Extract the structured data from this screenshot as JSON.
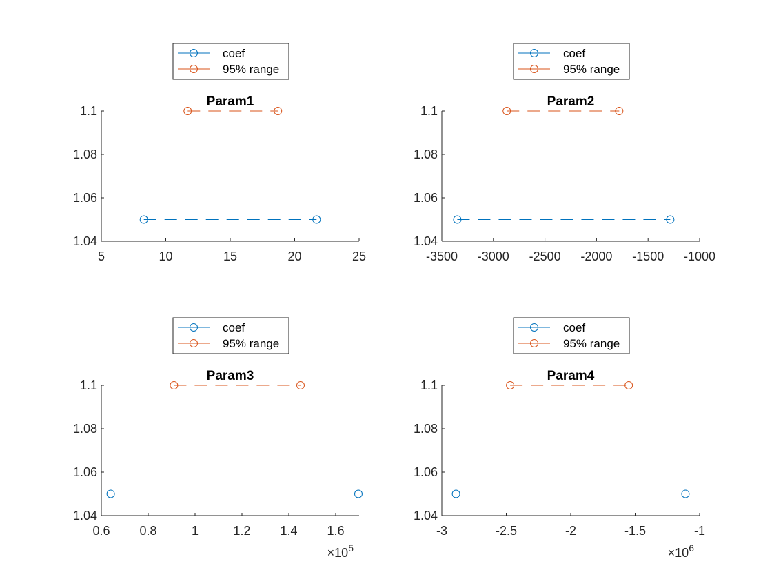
{
  "figure": {
    "legend_labels": [
      "coef",
      "95% range"
    ]
  },
  "colors": {
    "coef": "#0072BD",
    "range": "#D95319",
    "axis": "#262626"
  },
  "chart_data": [
    {
      "type": "line",
      "title": "Param1",
      "xlim": [
        5,
        25
      ],
      "ylim": [
        1.04,
        1.1
      ],
      "xticks": [
        "5",
        "10",
        "15",
        "20",
        "25"
      ],
      "xtick_values": [
        5,
        10,
        15,
        20,
        25
      ],
      "yticks": [
        "1.04",
        "1.06",
        "1.08",
        "1.1"
      ],
      "ytick_values": [
        1.04,
        1.06,
        1.08,
        1.1
      ],
      "exponent": "",
      "legend": "top-center, above axes",
      "series": [
        {
          "name": "coef",
          "x": [
            8.3,
            21.7
          ],
          "y": [
            1.05,
            1.05
          ]
        },
        {
          "name": "95% range",
          "x": [
            11.7,
            18.7
          ],
          "y": [
            1.1,
            1.1
          ]
        }
      ]
    },
    {
      "type": "line",
      "title": "Param2",
      "xlim": [
        -3500,
        -1000
      ],
      "ylim": [
        1.04,
        1.1
      ],
      "xticks": [
        "-3500",
        "-3000",
        "-2500",
        "-2000",
        "-1500",
        "-1000"
      ],
      "xtick_values": [
        -3500,
        -3000,
        -2500,
        -2000,
        -1500,
        -1000
      ],
      "yticks": [
        "1.04",
        "1.06",
        "1.08",
        "1.1"
      ],
      "ytick_values": [
        1.04,
        1.06,
        1.08,
        1.1
      ],
      "exponent": "",
      "legend": "top-center, above axes",
      "series": [
        {
          "name": "coef",
          "x": [
            -3350,
            -1285
          ],
          "y": [
            1.05,
            1.05
          ]
        },
        {
          "name": "95% range",
          "x": [
            -2870,
            -1780
          ],
          "y": [
            1.1,
            1.1
          ]
        }
      ]
    },
    {
      "type": "line",
      "title": "Param3",
      "xlim": [
        0.6,
        1.7
      ],
      "ylim": [
        1.04,
        1.1
      ],
      "xticks": [
        "0.6",
        "0.8",
        "1",
        "1.2",
        "1.4",
        "1.6"
      ],
      "xtick_values": [
        0.6,
        0.8,
        1.0,
        1.2,
        1.4,
        1.6
      ],
      "yticks": [
        "1.04",
        "1.06",
        "1.08",
        "1.1"
      ],
      "ytick_values": [
        1.04,
        1.06,
        1.08,
        1.1
      ],
      "exponent": "5",
      "legend": "top-center, above axes",
      "series": [
        {
          "name": "coef",
          "x": [
            0.64,
            1.697
          ],
          "y": [
            1.05,
            1.05
          ]
        },
        {
          "name": "95% range",
          "x": [
            0.91,
            1.45
          ],
          "y": [
            1.1,
            1.1
          ]
        }
      ]
    },
    {
      "type": "line",
      "title": "Param4",
      "xlim": [
        -3,
        -1
      ],
      "ylim": [
        1.04,
        1.1
      ],
      "xticks": [
        "-3",
        "-2.5",
        "-2",
        "-1.5",
        "-1"
      ],
      "xtick_values": [
        -3,
        -2.5,
        -2,
        -1.5,
        -1
      ],
      "yticks": [
        "1.04",
        "1.06",
        "1.08",
        "1.1"
      ],
      "ytick_values": [
        1.04,
        1.06,
        1.08,
        1.1
      ],
      "exponent": "6",
      "legend": "top-center, above axes",
      "series": [
        {
          "name": "coef",
          "x": [
            -2.89,
            -1.11
          ],
          "y": [
            1.05,
            1.05
          ]
        },
        {
          "name": "95% range",
          "x": [
            -2.47,
            -1.55
          ],
          "y": [
            1.1,
            1.1
          ]
        }
      ]
    }
  ]
}
